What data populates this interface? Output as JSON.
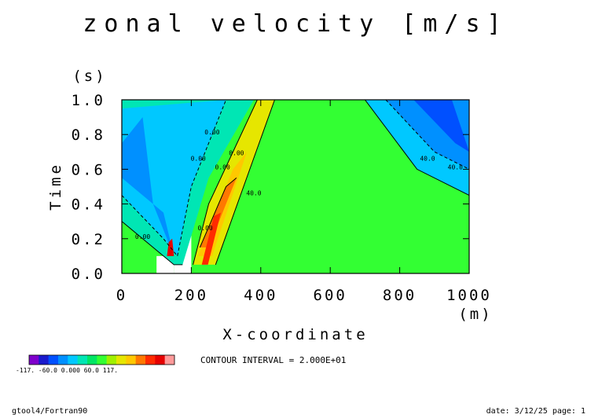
{
  "chart_data": {
    "type": "contour",
    "title": "zonal velocity [m/s]",
    "xlabel": "X-coordinate",
    "xunit": "(m)",
    "ylabel": "Time",
    "yunit": "(s)",
    "xlim": [
      0,
      1000
    ],
    "ylim": [
      0.0,
      1.0
    ],
    "xticks": [
      "0",
      "200",
      "400",
      "600",
      "800",
      "1000"
    ],
    "yticks": [
      "0.0",
      "0.2",
      "0.4",
      "0.6",
      "0.8",
      "1.0"
    ],
    "contour_interval_text": "CONTOUR INTERVAL = 2.000E+01",
    "contour_labels": [
      "0.00",
      "0.00",
      "0.00",
      "0.00",
      "0.00",
      "0.00",
      "40.0",
      "40.0",
      "40.0"
    ],
    "colorbar": {
      "colors": [
        "#7f00cc",
        "#1a1acc",
        "#0050ff",
        "#0090ff",
        "#00c8ff",
        "#00e6b4",
        "#00e664",
        "#33ff33",
        "#a0f000",
        "#e6e600",
        "#ffc800",
        "#ff7800",
        "#ff2a00",
        "#e60000",
        "#ff9a9a"
      ],
      "labels_text": "-117.  -60.0 0.000 60.0  117."
    }
  },
  "footer": {
    "left": "gtool4/Fortran90",
    "right": "date: 3/12/25 page: 1"
  }
}
